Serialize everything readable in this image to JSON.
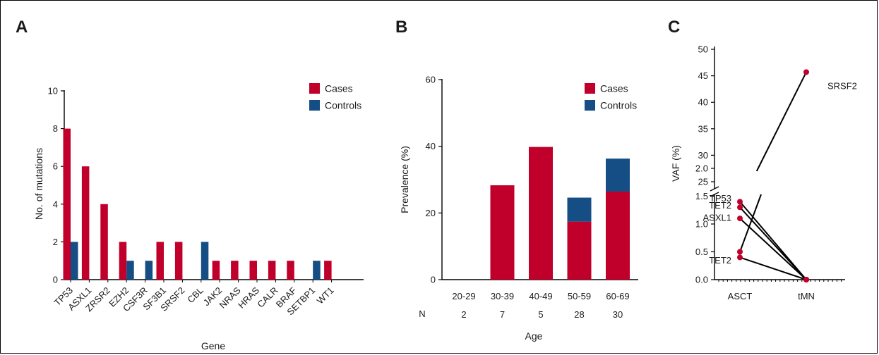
{
  "colors": {
    "cases": "#c0002a",
    "controls": "#154d85",
    "points": "#c0002a"
  },
  "chart_data": [
    {
      "panel": "A",
      "type": "bar",
      "xlabel": "Gene",
      "ylabel": "No. of mutations",
      "ylim": [
        0,
        10
      ],
      "yticks": [
        0,
        2,
        4,
        6,
        8,
        10
      ],
      "legend_position": "top-right",
      "categories": [
        "TP53",
        "ASXL1",
        "ZRSR2",
        "EZH2",
        "CSF3R",
        "SF3B1",
        "SRSF2",
        "CBL",
        "JAK2",
        "NRAS",
        "HRAS",
        "CALR",
        "BRAF",
        "SETBP1",
        "WT1"
      ],
      "series": [
        {
          "name": "Cases",
          "values": [
            8,
            6,
            4,
            2,
            0,
            2,
            2,
            0,
            1,
            1,
            1,
            1,
            1,
            0,
            1
          ]
        },
        {
          "name": "Controls",
          "values": [
            2,
            0,
            0,
            1,
            1,
            0,
            0,
            2,
            0,
            0,
            0,
            0,
            0,
            1,
            0
          ]
        }
      ]
    },
    {
      "panel": "B",
      "type": "bar",
      "stacked": true,
      "xlabel": "Age",
      "ylabel": "Prevalence (%)",
      "ylim": [
        0,
        60
      ],
      "yticks": [
        0,
        20,
        40,
        60
      ],
      "legend_position": "top-right",
      "row_label": "N",
      "categories": [
        "20-29",
        "30-39",
        "40-49",
        "50-59",
        "60-69"
      ],
      "n": [
        "2",
        "7",
        "5",
        "28",
        "30"
      ],
      "series": [
        {
          "name": "Cases",
          "values": [
            0,
            28.3,
            39.8,
            17.4,
            26.4
          ]
        },
        {
          "name": "Controls",
          "values": [
            0,
            0,
            0,
            7.2,
            9.9
          ]
        }
      ]
    },
    {
      "panel": "C",
      "type": "line",
      "xlabel": "",
      "ylabel": "VAF (%)",
      "broken_axis": true,
      "ylim_lower": [
        0,
        2
      ],
      "ylim_upper": [
        25,
        50
      ],
      "yticks_lower": [
        "0.0",
        "0.5",
        "1.0",
        "1.5",
        "2.0"
      ],
      "yticks_upper": [
        "25",
        "30",
        "35",
        "40",
        "45",
        "50"
      ],
      "categories": [
        "ASCT",
        "tMN"
      ],
      "lines": [
        {
          "label": "TP53",
          "asct": 1.4,
          "tmn": 0,
          "label_side": "left"
        },
        {
          "label": "TET2",
          "asct": 1.3,
          "tmn": 0,
          "label_side": "left"
        },
        {
          "label": "ASXL1",
          "asct": 1.1,
          "tmn": 0,
          "label_side": "left"
        },
        {
          "label": "TET2",
          "asct": 0.4,
          "tmn": 0,
          "label_side": "left"
        },
        {
          "label": "SRSF2",
          "asct": 0.5,
          "tmn": 45.7,
          "label_side": "right"
        }
      ]
    }
  ]
}
